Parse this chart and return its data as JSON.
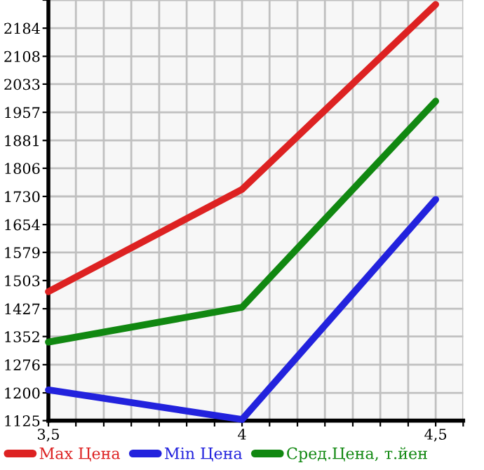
{
  "chart_data": {
    "type": "line",
    "x": [
      3.5,
      4,
      4.5
    ],
    "series": [
      {
        "name": "Max Цена",
        "color": "#dd2222",
        "values": [
          1473,
          1749,
          2248
        ]
      },
      {
        "name": "Min Цена",
        "color": "#2222dd",
        "values": [
          1208,
          1128,
          1722
        ]
      },
      {
        "name": "Сред.Цена, т.йен",
        "color": "#118811",
        "values": [
          1337,
          1431,
          1987
        ]
      }
    ],
    "xlim": [
      3.5,
      4.571
    ],
    "xticks": [
      {
        "value": 3.5,
        "label": "3,5"
      },
      {
        "value": 3.571,
        "label": null
      },
      {
        "value": 3.643,
        "label": null
      },
      {
        "value": 3.714,
        "label": null
      },
      {
        "value": 3.786,
        "label": null
      },
      {
        "value": 3.857,
        "label": null
      },
      {
        "value": 3.929,
        "label": null
      },
      {
        "value": 4,
        "label": "4"
      },
      {
        "value": 4.071,
        "label": null
      },
      {
        "value": 4.143,
        "label": null
      },
      {
        "value": 4.214,
        "label": null
      },
      {
        "value": 4.286,
        "label": null
      },
      {
        "value": 4.357,
        "label": null
      },
      {
        "value": 4.429,
        "label": null
      },
      {
        "value": 4.5,
        "label": "4,5"
      },
      {
        "value": 4.571,
        "label": null
      }
    ],
    "ylim": [
      1125,
      2260
    ],
    "yticks": [
      1125,
      1200,
      1276,
      1352,
      1427,
      1503,
      1579,
      1654,
      1730,
      1806,
      1881,
      1957,
      2033,
      2108,
      2184,
      {
        "value": 2260,
        "label": null
      }
    ],
    "grid": true,
    "legend": "bottom",
    "marker": "none",
    "line_style": "solid"
  }
}
